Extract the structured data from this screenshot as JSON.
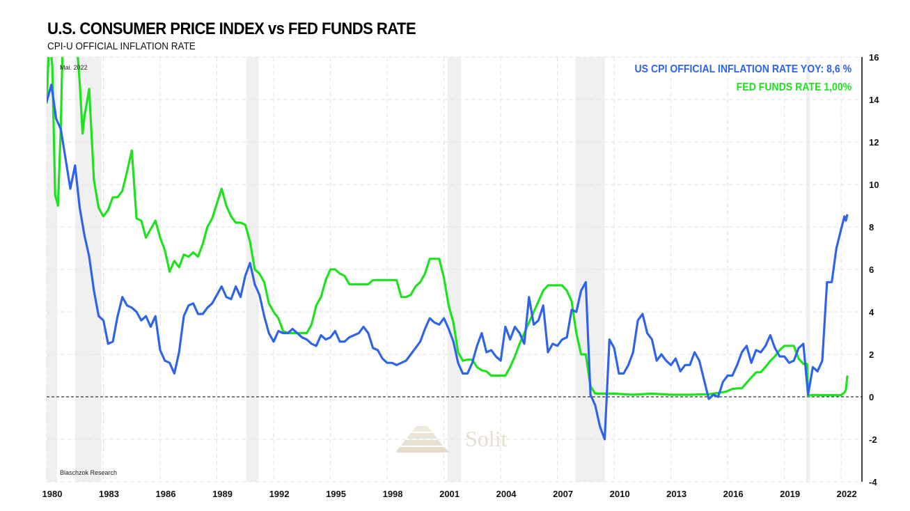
{
  "header": {
    "title": "U.S. CONSUMER PRICE INDEX vs FED FUNDS RATE",
    "subtitle": "CPI-U OFFICIAL INFLATION RATE"
  },
  "annotations": {
    "date_note": "Mai. 2022",
    "source": "Blaschzok Research",
    "watermark": "Solit"
  },
  "colors": {
    "cpi": "#2f63ea",
    "fed": "#1de21d",
    "recession": "#f0f0f0",
    "grid": "#e2e2e2",
    "zero_line": "#000000",
    "watermark": "#e7ded0"
  },
  "chart_data": {
    "type": "line",
    "title": "U.S. CONSUMER PRICE INDEX vs FED FUNDS RATE",
    "subtitle": "CPI-U OFFICIAL INFLATION RATE",
    "xlabel": "",
    "ylabel": "",
    "xlim": [
      1980.0,
      2022.8
    ],
    "ylim": [
      -4,
      16
    ],
    "x_ticks": [
      1980,
      1983,
      1986,
      1989,
      1992,
      1995,
      1998,
      2001,
      2004,
      2007,
      2010,
      2013,
      2016,
      2019,
      2022
    ],
    "y_ticks": [
      -4,
      -2,
      0,
      2,
      4,
      6,
      8,
      10,
      12,
      14,
      16
    ],
    "y_axis_side": "right",
    "grid": true,
    "zero_reference_line": true,
    "legend_placement": "top-right",
    "legend": [
      {
        "label": "US CPI OFFICIAL INFLATION RATE YOY: 8,6 %",
        "series": "cpi"
      },
      {
        "label": "FED FUNDS RATE 1,00%",
        "series": "fed"
      }
    ],
    "recessions": [
      [
        1980.0,
        1980.55
      ],
      [
        1981.5,
        1982.9
      ],
      [
        1990.55,
        1991.2
      ],
      [
        2001.2,
        2001.9
      ],
      [
        2007.95,
        2009.5
      ],
      [
        2020.15,
        2020.35
      ]
    ],
    "series": [
      {
        "name": "US CPI Official Inflation Rate YoY",
        "key": "cpi",
        "x": [
          1980.0,
          1980.25,
          1980.5,
          1980.75,
          1981.0,
          1981.25,
          1981.5,
          1981.75,
          1982.0,
          1982.25,
          1982.5,
          1982.75,
          1983.0,
          1983.25,
          1983.5,
          1983.75,
          1984.0,
          1984.25,
          1984.5,
          1984.75,
          1985.0,
          1985.25,
          1985.5,
          1985.75,
          1986.0,
          1986.25,
          1986.5,
          1986.75,
          1987.0,
          1987.25,
          1987.5,
          1987.75,
          1988.0,
          1988.25,
          1988.5,
          1988.75,
          1989.0,
          1989.25,
          1989.5,
          1989.75,
          1990.0,
          1990.25,
          1990.5,
          1990.75,
          1991.0,
          1991.25,
          1991.5,
          1991.75,
          1992.0,
          1992.25,
          1992.5,
          1992.75,
          1993.0,
          1993.25,
          1993.5,
          1993.75,
          1994.0,
          1994.25,
          1994.5,
          1994.75,
          1995.0,
          1995.25,
          1995.5,
          1995.75,
          1996.0,
          1996.25,
          1996.5,
          1996.75,
          1997.0,
          1997.25,
          1997.5,
          1997.75,
          1998.0,
          1998.25,
          1998.5,
          1998.75,
          1999.0,
          1999.25,
          1999.5,
          1999.75,
          2000.0,
          2000.25,
          2000.5,
          2000.75,
          2001.0,
          2001.25,
          2001.5,
          2001.75,
          2002.0,
          2002.25,
          2002.5,
          2002.75,
          2003.0,
          2003.25,
          2003.5,
          2003.75,
          2004.0,
          2004.25,
          2004.5,
          2004.75,
          2005.0,
          2005.25,
          2005.5,
          2005.75,
          2006.0,
          2006.25,
          2006.5,
          2006.75,
          2007.0,
          2007.25,
          2007.5,
          2007.75,
          2008.0,
          2008.25,
          2008.5,
          2008.75,
          2009.0,
          2009.25,
          2009.5,
          2009.75,
          2010.0,
          2010.25,
          2010.5,
          2010.75,
          2011.0,
          2011.25,
          2011.5,
          2011.75,
          2012.0,
          2012.25,
          2012.5,
          2012.75,
          2013.0,
          2013.25,
          2013.5,
          2013.75,
          2014.0,
          2014.25,
          2014.5,
          2014.75,
          2015.0,
          2015.25,
          2015.5,
          2015.75,
          2016.0,
          2016.25,
          2016.5,
          2016.75,
          2017.0,
          2017.25,
          2017.5,
          2017.75,
          2018.0,
          2018.25,
          2018.5,
          2018.75,
          2019.0,
          2019.25,
          2019.5,
          2019.75,
          2020.0,
          2020.25,
          2020.5,
          2020.75,
          2021.0,
          2021.25,
          2021.5,
          2021.75,
          2022.0,
          2022.17,
          2022.25,
          2022.33
        ],
        "values": [
          13.9,
          14.7,
          13.1,
          12.6,
          11.2,
          9.8,
          10.9,
          8.9,
          7.6,
          6.6,
          5.0,
          3.8,
          3.6,
          2.5,
          2.6,
          3.8,
          4.7,
          4.3,
          4.2,
          4.0,
          3.6,
          3.8,
          3.3,
          3.8,
          2.2,
          1.7,
          1.6,
          1.1,
          2.1,
          3.8,
          4.3,
          4.4,
          3.9,
          3.9,
          4.2,
          4.4,
          4.8,
          5.2,
          4.7,
          4.6,
          5.2,
          4.7,
          5.7,
          6.3,
          5.3,
          4.8,
          3.8,
          3.0,
          2.6,
          3.1,
          3.0,
          3.0,
          3.2,
          3.0,
          2.8,
          2.7,
          2.5,
          2.4,
          2.9,
          2.7,
          2.8,
          3.1,
          2.6,
          2.6,
          2.8,
          2.9,
          3.0,
          3.3,
          3.0,
          2.3,
          2.2,
          1.8,
          1.6,
          1.6,
          1.5,
          1.6,
          1.7,
          2.0,
          2.3,
          2.6,
          3.2,
          3.7,
          3.5,
          3.4,
          3.7,
          3.2,
          2.6,
          1.6,
          1.1,
          1.1,
          1.6,
          2.4,
          3.0,
          2.1,
          2.2,
          1.9,
          1.7,
          3.3,
          2.7,
          3.3,
          3.0,
          2.5,
          4.7,
          3.4,
          3.6,
          4.3,
          2.1,
          2.5,
          2.4,
          2.7,
          2.8,
          4.1,
          4.0,
          5.0,
          5.4,
          0.1,
          -0.4,
          -1.4,
          -2.0,
          2.7,
          2.3,
          1.1,
          1.1,
          1.5,
          2.1,
          3.6,
          3.9,
          3.0,
          2.7,
          1.7,
          2.0,
          1.7,
          1.5,
          1.8,
          1.2,
          1.5,
          1.5,
          2.1,
          1.7,
          0.8,
          -0.1,
          0.1,
          0.0,
          0.7,
          1.0,
          1.0,
          1.5,
          2.1,
          2.4,
          1.6,
          2.2,
          2.1,
          2.4,
          2.9,
          2.3,
          1.9,
          1.9,
          1.6,
          1.7,
          2.3,
          2.5,
          0.1,
          1.4,
          1.2,
          1.7,
          5.4,
          5.4,
          7.0,
          7.9,
          8.5,
          8.3,
          8.6
        ]
      },
      {
        "name": "Fed Funds Rate",
        "key": "fed",
        "x": [
          1980.0,
          1980.15,
          1980.3,
          1980.45,
          1980.6,
          1980.75,
          1980.9,
          1981.0,
          1981.25,
          1981.5,
          1981.75,
          1981.9,
          1982.0,
          1982.25,
          1982.5,
          1982.75,
          1983.0,
          1983.25,
          1983.5,
          1983.75,
          1984.0,
          1984.25,
          1984.5,
          1984.75,
          1985.0,
          1985.25,
          1985.5,
          1985.75,
          1986.0,
          1986.25,
          1986.5,
          1986.75,
          1987.0,
          1987.25,
          1987.5,
          1987.75,
          1988.0,
          1988.25,
          1988.5,
          1988.75,
          1989.0,
          1989.25,
          1989.5,
          1989.75,
          1990.0,
          1990.25,
          1990.5,
          1990.75,
          1991.0,
          1991.25,
          1991.5,
          1991.75,
          1992.0,
          1992.25,
          1992.5,
          1992.75,
          1993.0,
          1993.25,
          1993.5,
          1993.75,
          1994.0,
          1994.25,
          1994.5,
          1994.75,
          1995.0,
          1995.25,
          1995.5,
          1995.75,
          1996.0,
          1996.25,
          1996.5,
          1996.75,
          1997.0,
          1997.25,
          1997.5,
          1997.75,
          1998.0,
          1998.25,
          1998.5,
          1998.75,
          1999.0,
          1999.25,
          1999.5,
          1999.75,
          2000.0,
          2000.25,
          2000.5,
          2000.75,
          2001.0,
          2001.25,
          2001.5,
          2001.75,
          2002.0,
          2002.25,
          2002.5,
          2002.75,
          2003.0,
          2003.25,
          2003.5,
          2003.75,
          2004.0,
          2004.25,
          2004.5,
          2004.75,
          2005.0,
          2005.25,
          2005.5,
          2005.75,
          2006.0,
          2006.25,
          2006.5,
          2006.75,
          2007.0,
          2007.25,
          2007.5,
          2007.75,
          2008.0,
          2008.25,
          2008.5,
          2008.75,
          2009.0,
          2010.0,
          2011.0,
          2012.0,
          2013.0,
          2014.0,
          2015.0,
          2015.9,
          2016.25,
          2016.5,
          2016.75,
          2017.0,
          2017.25,
          2017.5,
          2017.75,
          2018.0,
          2018.25,
          2018.5,
          2018.75,
          2019.0,
          2019.25,
          2019.5,
          2019.75,
          2020.0,
          2020.2,
          2020.25,
          2020.5,
          2020.75,
          2021.0,
          2021.5,
          2022.0,
          2022.17,
          2022.25,
          2022.33
        ],
        "values": [
          13.8,
          17.2,
          15.5,
          9.5,
          9.0,
          12.8,
          18.9,
          19.1,
          18.9,
          17.8,
          14.8,
          12.4,
          13.2,
          14.5,
          10.2,
          8.9,
          8.5,
          8.8,
          9.4,
          9.4,
          9.7,
          10.6,
          11.6,
          8.4,
          8.3,
          7.5,
          7.9,
          8.3,
          7.5,
          6.9,
          5.9,
          6.4,
          6.1,
          6.7,
          6.6,
          6.8,
          6.6,
          7.2,
          8.0,
          8.4,
          9.1,
          9.8,
          9.0,
          8.5,
          8.2,
          8.2,
          8.1,
          7.3,
          6.0,
          5.8,
          5.4,
          4.4,
          4.0,
          3.7,
          3.1,
          3.0,
          3.0,
          3.0,
          3.0,
          3.0,
          3.4,
          4.3,
          4.7,
          5.5,
          6.0,
          6.0,
          5.8,
          5.7,
          5.3,
          5.3,
          5.3,
          5.3,
          5.3,
          5.5,
          5.5,
          5.5,
          5.5,
          5.5,
          5.5,
          4.7,
          4.7,
          4.8,
          5.2,
          5.4,
          5.8,
          6.5,
          6.5,
          6.5,
          5.6,
          4.3,
          3.5,
          2.1,
          1.7,
          1.75,
          1.75,
          1.4,
          1.25,
          1.2,
          1.0,
          1.0,
          1.0,
          1.0,
          1.4,
          1.9,
          2.5,
          3.0,
          3.5,
          4.0,
          4.5,
          5.0,
          5.25,
          5.25,
          5.25,
          5.25,
          5.0,
          4.5,
          3.0,
          2.0,
          2.0,
          0.5,
          0.15,
          0.15,
          0.1,
          0.15,
          0.1,
          0.1,
          0.12,
          0.24,
          0.37,
          0.4,
          0.4,
          0.66,
          0.91,
          1.15,
          1.16,
          1.41,
          1.69,
          1.91,
          2.2,
          2.4,
          2.4,
          2.4,
          1.8,
          1.55,
          1.55,
          0.05,
          0.09,
          0.09,
          0.08,
          0.08,
          0.08,
          0.2,
          0.33,
          1.0
        ]
      }
    ]
  }
}
